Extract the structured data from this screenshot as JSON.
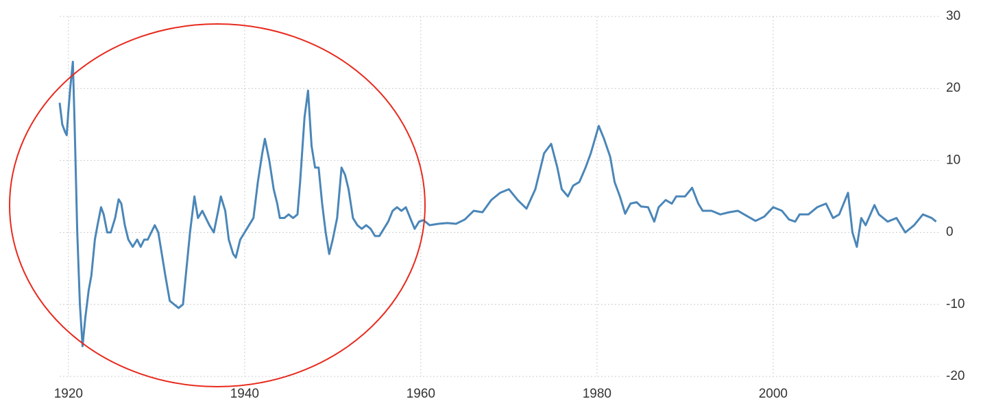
{
  "chart_data": {
    "type": "line",
    "x": [
      1919.0,
      1919.3,
      1919.6,
      1919.8,
      1920.0,
      1920.2,
      1920.5,
      1920.7,
      1921.0,
      1921.3,
      1921.6,
      1921.9,
      1922.3,
      1922.6,
      1923.0,
      1923.3,
      1923.7,
      1924.0,
      1924.4,
      1924.8,
      1925.3,
      1925.7,
      1926.0,
      1926.4,
      1926.8,
      1927.3,
      1927.8,
      1928.2,
      1928.6,
      1929.0,
      1929.4,
      1929.8,
      1930.2,
      1930.6,
      1931.0,
      1931.5,
      1932.0,
      1932.5,
      1933.0,
      1933.4,
      1933.8,
      1934.3,
      1934.7,
      1935.2,
      1935.6,
      1936.0,
      1936.5,
      1937.0,
      1937.3,
      1937.8,
      1938.2,
      1938.7,
      1939.0,
      1939.5,
      1940.0,
      1940.5,
      1941.0,
      1941.5,
      1942.0,
      1942.3,
      1942.8,
      1943.3,
      1943.7,
      1944.0,
      1944.5,
      1945.0,
      1945.5,
      1946.0,
      1946.3,
      1946.8,
      1947.2,
      1947.6,
      1948.0,
      1948.4,
      1948.8,
      1949.2,
      1949.6,
      1950.0,
      1950.5,
      1951.0,
      1951.4,
      1951.8,
      1952.3,
      1952.8,
      1953.3,
      1953.8,
      1954.3,
      1954.8,
      1955.3,
      1955.8,
      1956.3,
      1956.8,
      1957.3,
      1957.8,
      1958.3,
      1958.8,
      1959.3,
      1959.8,
      1960.3,
      1961,
      1962,
      1963,
      1964,
      1965,
      1966,
      1967,
      1968,
      1969,
      1970,
      1971,
      1972,
      1973,
      1974,
      1974.8,
      1975.5,
      1976,
      1976.7,
      1977.3,
      1978,
      1978.7,
      1979.3,
      1980.2,
      1980.8,
      1981.5,
      1982,
      1982.6,
      1983.2,
      1983.8,
      1984.5,
      1985,
      1985.8,
      1986.5,
      1987,
      1987.8,
      1988.5,
      1989,
      1990,
      1990.8,
      1991.5,
      1992,
      1993,
      1994,
      1995,
      1996,
      1997,
      1998,
      1999,
      2000,
      2001,
      2001.8,
      2002.5,
      2003,
      2004,
      2005,
      2006,
      2006.8,
      2007.5,
      2008.5,
      2009,
      2009.5,
      2010,
      2010.5,
      2011.5,
      2012,
      2013,
      2014,
      2015,
      2016,
      2017,
      2018,
      2018.5
    ],
    "series": [
      {
        "color": "#4a86b8",
        "values": [
          18,
          15,
          14,
          13.5,
          17,
          20,
          23.7,
          15,
          0,
          -10,
          -15.8,
          -12,
          -8,
          -6,
          -1,
          1,
          3.5,
          2.5,
          0,
          0,
          2,
          4.6,
          4,
          1,
          -1,
          -2,
          -1,
          -2,
          -1,
          -1,
          0,
          1,
          0,
          -3,
          -6,
          -9.5,
          -10,
          -10.5,
          -10,
          -5,
          0,
          5,
          2,
          3,
          2,
          1,
          0,
          3,
          5,
          3,
          -1,
          -3,
          -3.5,
          -1,
          0,
          1,
          2,
          7,
          11,
          13,
          10,
          6,
          4,
          2,
          2,
          2.5,
          2,
          2.5,
          7,
          16,
          19.7,
          12,
          9,
          9,
          4,
          0,
          -3,
          -1,
          2,
          9,
          8,
          6,
          2,
          1,
          0.5,
          1,
          0.5,
          -0.5,
          -0.5,
          0.5,
          1.5,
          3,
          3.5,
          3,
          3.5,
          2,
          0.5,
          1.5,
          1.7,
          1,
          1.2,
          1.3,
          1.2,
          1.8,
          3,
          2.8,
          4.5,
          5.5,
          6,
          4.5,
          3.3,
          6,
          11,
          12.3,
          9,
          6,
          5,
          6.5,
          7,
          9,
          11,
          14.8,
          13,
          10.5,
          7,
          5,
          2.6,
          4,
          4.2,
          3.6,
          3.5,
          1.5,
          3.5,
          4.5,
          4,
          5,
          5,
          6.2,
          4,
          3,
          3,
          2.5,
          2.8,
          3,
          2.3,
          1.6,
          2.2,
          3.5,
          3,
          1.8,
          1.5,
          2.5,
          2.5,
          3.5,
          4,
          2,
          2.5,
          5.5,
          0,
          -2,
          2,
          1,
          3.8,
          2.5,
          1.5,
          2,
          0,
          1,
          2.5,
          2,
          1.5
        ]
      }
    ],
    "xlim": [
      1919,
      2019
    ],
    "xticks": [
      1920,
      1940,
      1960,
      1980,
      2000
    ],
    "ylim": [
      -20,
      30
    ],
    "yticks": [
      -20,
      -10,
      0,
      10,
      20,
      30
    ],
    "grid": true
  }
}
